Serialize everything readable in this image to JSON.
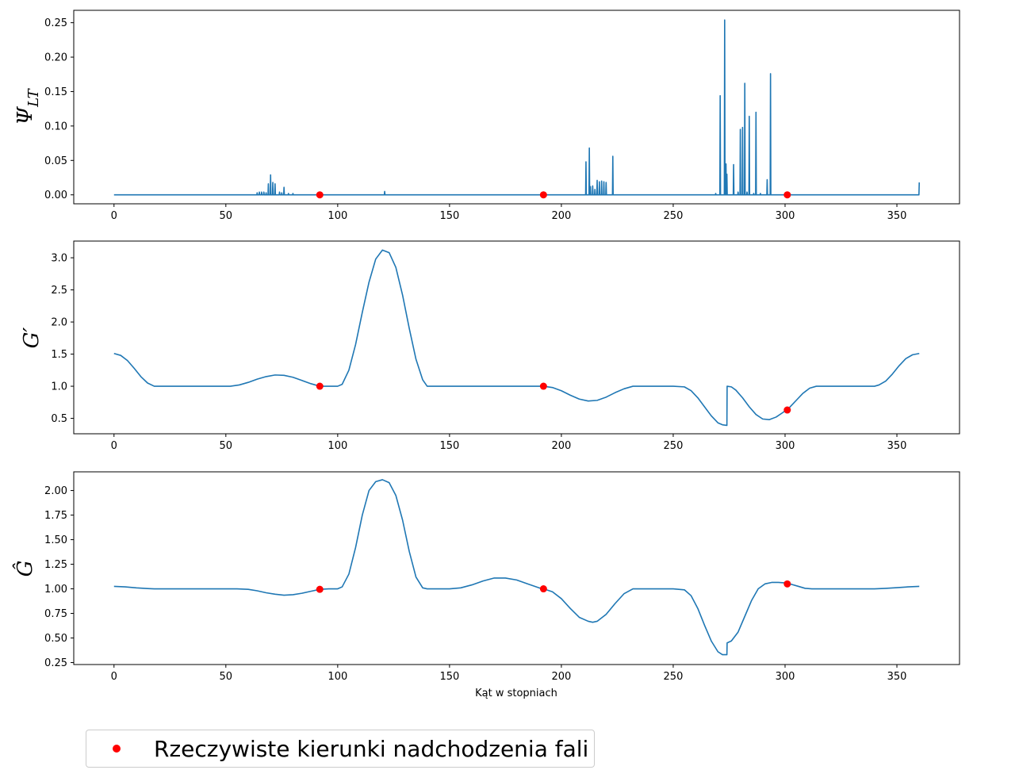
{
  "chart_data": [
    {
      "type": "line",
      "ylabel": "ΨLT",
      "ylabel_main": "Ψ",
      "ylabel_sub": "LT",
      "xlim": [
        -18,
        378
      ],
      "ylim": [
        -0.013,
        0.268
      ],
      "xticks": [
        0,
        50,
        100,
        150,
        200,
        250,
        300,
        350
      ],
      "yticks": [
        0.0,
        0.05,
        0.1,
        0.15,
        0.2,
        0.25
      ],
      "ytick_labels": [
        "0.00",
        "0.05",
        "0.10",
        "0.15",
        "0.20",
        "0.25"
      ],
      "series": [
        {
          "kind": "line",
          "color": "#1f77b4",
          "baseline": 0.0,
          "spikes": [
            [
              64,
              0.003
            ],
            [
              65,
              0.004
            ],
            [
              66,
              0.004
            ],
            [
              67,
              0.004
            ],
            [
              68,
              0.003
            ],
            [
              69,
              0.016
            ],
            [
              70,
              0.029
            ],
            [
              71,
              0.018
            ],
            [
              72,
              0.016
            ],
            [
              74,
              0.004
            ],
            [
              75,
              0.003
            ],
            [
              76,
              0.011
            ],
            [
              78,
              0.002
            ],
            [
              80,
              0.002
            ],
            [
              121,
              0.005
            ],
            [
              211,
              0.048
            ],
            [
              212.5,
              0.068
            ],
            [
              213,
              0.012
            ],
            [
              214,
              0.013
            ],
            [
              215,
              0.008
            ],
            [
              216,
              0.021
            ],
            [
              217,
              0.019
            ],
            [
              218,
              0.02
            ],
            [
              219,
              0.019
            ],
            [
              220,
              0.018
            ],
            [
              223,
              0.056
            ],
            [
              269,
              0.002
            ],
            [
              271,
              0.144
            ],
            [
              273,
              0.254
            ],
            [
              273.6,
              0.045
            ],
            [
              274,
              0.03
            ],
            [
              277,
              0.044
            ],
            [
              279,
              0.004
            ],
            [
              280,
              0.095
            ],
            [
              281,
              0.098
            ],
            [
              282,
              0.162
            ],
            [
              283,
              0.004
            ],
            [
              284,
              0.114
            ],
            [
              286,
              0.002
            ],
            [
              287,
              0.12
            ],
            [
              289,
              0.002
            ],
            [
              292,
              0.022
            ],
            [
              293.5,
              0.176
            ],
            [
              360,
              0.018
            ]
          ]
        },
        {
          "kind": "points",
          "name": "Rzeczywiste kierunki nadchodzenia fali",
          "color": "#ff0000",
          "x": [
            92,
            192,
            301
          ],
          "y": [
            0.0,
            0.0,
            0.0
          ]
        }
      ]
    },
    {
      "type": "line",
      "ylabel": "G′",
      "xlim": [
        -18,
        378
      ],
      "ylim": [
        0.26,
        3.26
      ],
      "xticks": [
        0,
        50,
        100,
        150,
        200,
        250,
        300,
        350
      ],
      "yticks": [
        0.5,
        1.0,
        1.5,
        2.0,
        2.5,
        3.0
      ],
      "ytick_labels": [
        "0.5",
        "1.0",
        "1.5",
        "2.0",
        "2.5",
        "3.0"
      ],
      "series": [
        {
          "kind": "line",
          "color": "#1f77b4",
          "x": [
            0,
            3,
            6,
            9,
            12,
            15,
            18,
            20,
            30,
            40,
            52,
            56,
            60,
            64,
            68,
            72,
            76,
            80,
            84,
            88,
            92,
            96,
            100,
            102,
            105,
            108,
            111,
            114,
            117,
            120,
            123,
            126,
            129,
            132,
            135,
            138,
            140,
            150,
            160,
            170,
            180,
            192,
            196,
            200,
            204,
            208,
            212,
            216,
            220,
            224,
            228,
            232,
            240,
            250,
            255,
            258,
            261,
            264,
            267,
            270,
            272,
            274,
            274.1,
            276,
            278,
            281,
            284,
            287,
            290,
            293,
            296,
            299,
            302,
            305,
            308,
            311,
            314,
            320,
            330,
            340,
            342,
            345,
            348,
            351,
            354,
            357,
            360
          ],
          "y": [
            1.51,
            1.48,
            1.4,
            1.28,
            1.15,
            1.05,
            1.0,
            1.0,
            1.0,
            1.0,
            1.0,
            1.02,
            1.06,
            1.11,
            1.15,
            1.175,
            1.17,
            1.14,
            1.09,
            1.04,
            1.0,
            1.0,
            1.0,
            1.03,
            1.25,
            1.65,
            2.15,
            2.62,
            2.98,
            3.12,
            3.08,
            2.85,
            2.42,
            1.9,
            1.42,
            1.1,
            1.0,
            1.0,
            1.0,
            1.0,
            1.0,
            1.0,
            0.98,
            0.93,
            0.86,
            0.8,
            0.77,
            0.78,
            0.83,
            0.9,
            0.96,
            1.0,
            1.0,
            1.0,
            0.99,
            0.93,
            0.82,
            0.68,
            0.54,
            0.43,
            0.4,
            0.39,
            1.0,
            0.99,
            0.94,
            0.82,
            0.68,
            0.56,
            0.49,
            0.48,
            0.52,
            0.59,
            0.67,
            0.78,
            0.89,
            0.97,
            1.0,
            1.0,
            1.0,
            1.0,
            1.02,
            1.08,
            1.19,
            1.32,
            1.43,
            1.49,
            1.51
          ]
        },
        {
          "kind": "points",
          "name": "Rzeczywiste kierunki nadchodzenia fali",
          "color": "#ff0000",
          "x": [
            92,
            192,
            301
          ],
          "y": [
            1.0,
            1.0,
            0.63
          ]
        }
      ]
    },
    {
      "type": "line",
      "ylabel": "Ĝ",
      "xlabel": "Kąt w stopniach",
      "xlim": [
        -18,
        378
      ],
      "ylim": [
        0.23,
        2.19
      ],
      "xticks": [
        0,
        50,
        100,
        150,
        200,
        250,
        300,
        350
      ],
      "yticks": [
        0.25,
        0.5,
        0.75,
        1.0,
        1.25,
        1.5,
        1.75,
        2.0
      ],
      "ytick_labels": [
        "0.25",
        "0.50",
        "0.75",
        "1.00",
        "1.25",
        "1.50",
        "1.75",
        "2.00"
      ],
      "series": [
        {
          "kind": "line",
          "color": "#1f77b4",
          "x": [
            0,
            5,
            10,
            15,
            18,
            20,
            30,
            40,
            55,
            60,
            64,
            68,
            72,
            76,
            80,
            84,
            88,
            92,
            96,
            100,
            102,
            105,
            108,
            111,
            114,
            117,
            120,
            123,
            126,
            129,
            132,
            135,
            138,
            140,
            150,
            155,
            160,
            165,
            170,
            175,
            180,
            185,
            190,
            192,
            196,
            200,
            204,
            208,
            212,
            214,
            216,
            220,
            224,
            228,
            232,
            240,
            250,
            255,
            258,
            261,
            264,
            267,
            270,
            272,
            274,
            274.1,
            276,
            279,
            282,
            285,
            288,
            291,
            294,
            297,
            300,
            303,
            306,
            309,
            312,
            320,
            330,
            340,
            345,
            350,
            355,
            360
          ],
          "y": [
            1.025,
            1.02,
            1.01,
            1.003,
            1.0,
            1.0,
            1.0,
            1.0,
            1.0,
            0.995,
            0.98,
            0.96,
            0.945,
            0.935,
            0.94,
            0.955,
            0.975,
            0.995,
            1.0,
            1.0,
            1.02,
            1.15,
            1.42,
            1.75,
            2.0,
            2.09,
            2.11,
            2.08,
            1.95,
            1.7,
            1.38,
            1.12,
            1.01,
            1.0,
            1.0,
            1.01,
            1.04,
            1.08,
            1.11,
            1.11,
            1.09,
            1.05,
            1.01,
            1.0,
            0.97,
            0.9,
            0.8,
            0.71,
            0.67,
            0.66,
            0.67,
            0.74,
            0.85,
            0.95,
            1.0,
            1.0,
            1.0,
            0.99,
            0.93,
            0.8,
            0.63,
            0.47,
            0.36,
            0.33,
            0.33,
            0.45,
            0.47,
            0.56,
            0.72,
            0.88,
            1.0,
            1.05,
            1.065,
            1.065,
            1.06,
            1.045,
            1.025,
            1.005,
            1.0,
            1.0,
            1.0,
            1.0,
            1.005,
            1.012,
            1.02,
            1.025
          ]
        },
        {
          "kind": "points",
          "name": "Rzeczywiste kierunki nadchodzenia fali",
          "color": "#ff0000",
          "x": [
            92,
            192,
            301
          ],
          "y": [
            0.995,
            1.0,
            1.05
          ]
        }
      ]
    }
  ],
  "legend": {
    "label": "Rzeczywiste kierunki nadchodzenia fali",
    "placement": "bottom-left",
    "marker_color": "#ff0000"
  },
  "colors": {
    "line": "#1f77b4",
    "markers": "#ff0000"
  }
}
